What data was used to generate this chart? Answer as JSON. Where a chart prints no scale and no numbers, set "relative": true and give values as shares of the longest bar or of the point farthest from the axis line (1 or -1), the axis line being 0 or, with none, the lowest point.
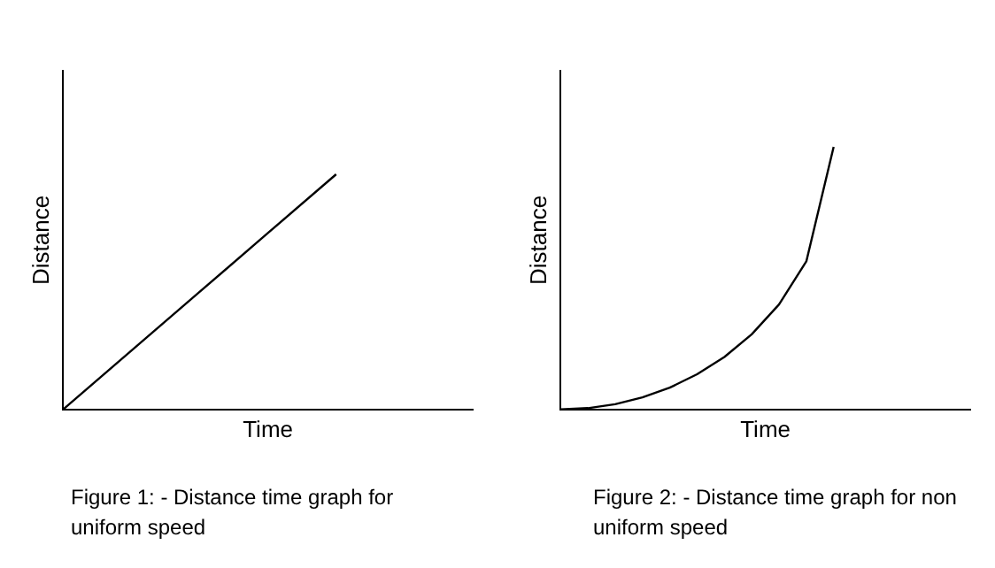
{
  "chart_data": [
    {
      "type": "line",
      "relative": true,
      "xlabel": "Time",
      "ylabel": "Distance",
      "categories": [
        null,
        null,
        null,
        null,
        null,
        null,
        null
      ],
      "series": [
        {
          "color": "#000000",
          "values": [
            0,
            0.25,
            0.5,
            0.75,
            1,
            null,
            null
          ]
        }
      ],
      "grid": false,
      "legend": false,
      "marker": "none",
      "line_style": "solid",
      "tick_labels": false,
      "annotations": [
        "Figure 1: - Distance time graph for uniform speed"
      ]
    },
    {
      "type": "line",
      "relative": true,
      "xlabel": "Time",
      "ylabel": "Distance",
      "categories": [
        null,
        null,
        null,
        null,
        null,
        null,
        null,
        null,
        null,
        null,
        null,
        null,
        null,
        null,
        null,
        null
      ],
      "series": [
        {
          "color": "#000000",
          "values": [
            0,
            0.005,
            0.02,
            0.046,
            0.083,
            0.134,
            0.2,
            0.286,
            0.4,
            0.564,
            1,
            null,
            null,
            null,
            null,
            null
          ]
        }
      ],
      "grid": false,
      "legend": false,
      "marker": "none",
      "line_style": "solid",
      "tick_labels": false,
      "annotations": [
        "Figure 2: - Distance time graph for non uniform speed"
      ]
    }
  ]
}
